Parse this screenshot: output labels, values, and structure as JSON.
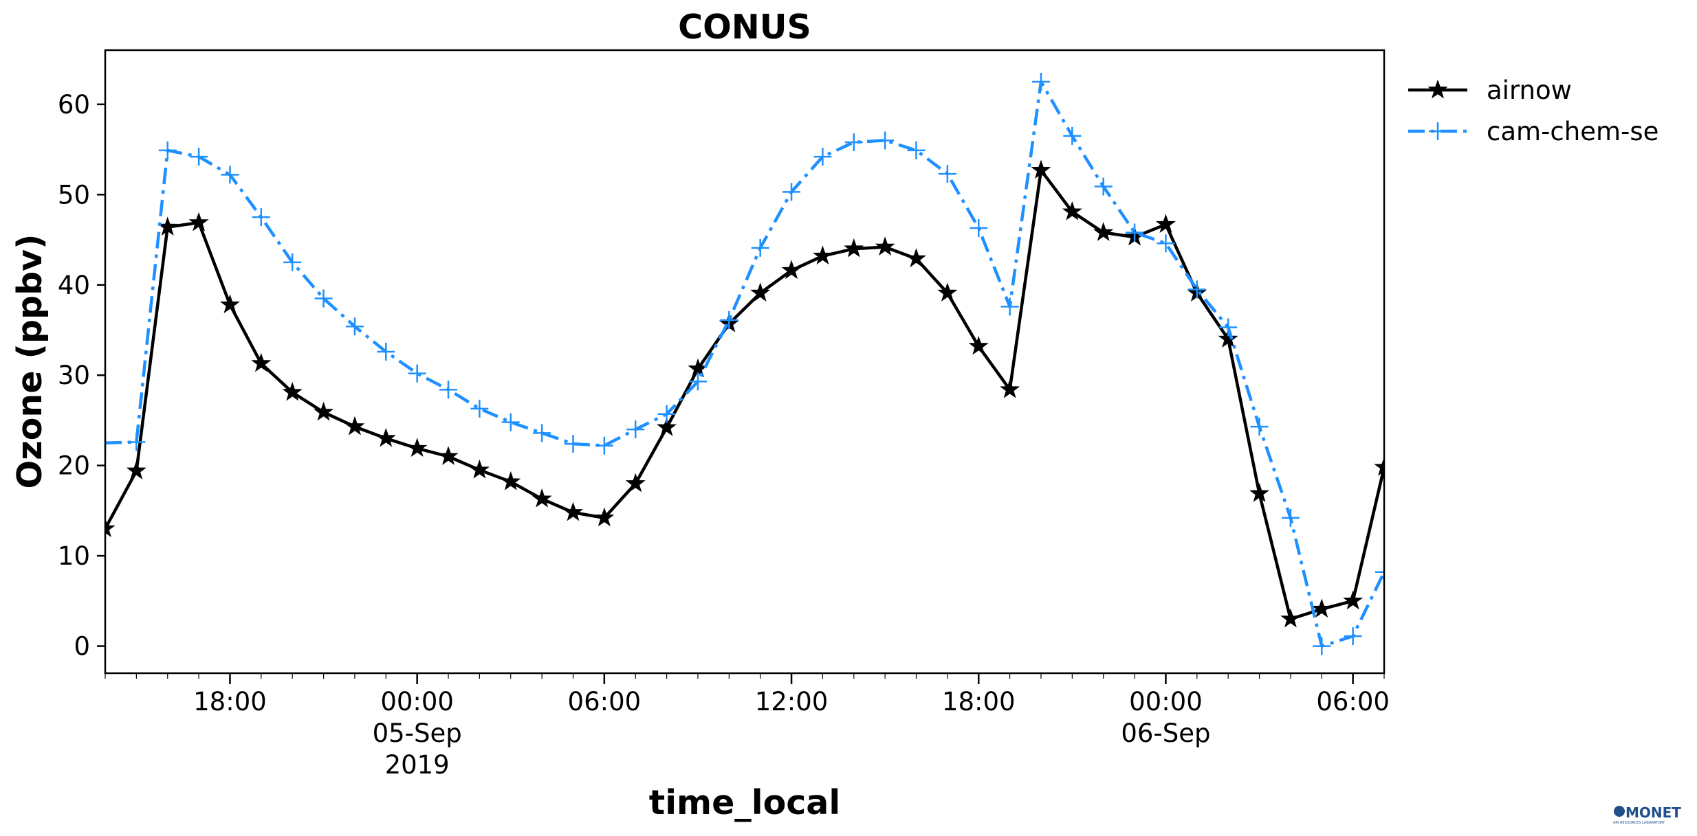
{
  "chart_data": {
    "type": "line",
    "title": "CONUS",
    "xlabel": "time_local",
    "ylabel": "Ozone (ppbv)",
    "xlim": [
      "2019-09-04T14:00",
      "2019-09-06T07:00"
    ],
    "ylim": [
      -3,
      66
    ],
    "x_ticks": [
      {
        "label": [
          "18:00"
        ]
      },
      {
        "label": [
          "00:00",
          "05-Sep",
          "2019"
        ]
      },
      {
        "label": [
          "06:00"
        ]
      },
      {
        "label": [
          "12:00"
        ]
      },
      {
        "label": [
          "18:00"
        ]
      },
      {
        "label": [
          "00:00",
          "06-Sep"
        ]
      },
      {
        "label": [
          "06:00"
        ]
      }
    ],
    "y_ticks": [
      0,
      10,
      20,
      30,
      40,
      50,
      60
    ],
    "grid": false,
    "legend_position": "outside top-right",
    "x": [
      "2019-09-04 14:00",
      "2019-09-04 15:00",
      "2019-09-04 16:00",
      "2019-09-04 17:00",
      "2019-09-04 18:00",
      "2019-09-04 19:00",
      "2019-09-04 20:00",
      "2019-09-04 21:00",
      "2019-09-04 22:00",
      "2019-09-04 23:00",
      "2019-09-05 00:00",
      "2019-09-05 01:00",
      "2019-09-05 02:00",
      "2019-09-05 03:00",
      "2019-09-05 04:00",
      "2019-09-05 05:00",
      "2019-09-05 06:00",
      "2019-09-05 07:00",
      "2019-09-05 08:00",
      "2019-09-05 09:00",
      "2019-09-05 10:00",
      "2019-09-05 11:00",
      "2019-09-05 12:00",
      "2019-09-05 13:00",
      "2019-09-05 14:00",
      "2019-09-05 15:00",
      "2019-09-05 16:00",
      "2019-09-05 17:00",
      "2019-09-05 18:00",
      "2019-09-05 19:00",
      "2019-09-05 20:00",
      "2019-09-05 21:00",
      "2019-09-05 22:00",
      "2019-09-05 23:00",
      "2019-09-06 00:00",
      "2019-09-06 01:00",
      "2019-09-06 02:00",
      "2019-09-06 03:00",
      "2019-09-06 04:00",
      "2019-09-06 05:00",
      "2019-09-06 06:00",
      "2019-09-06 07:00"
    ],
    "series": [
      {
        "name": "airnow",
        "color": "#000000",
        "marker": "star",
        "linestyle": "solid",
        "values": [
          13.0,
          19.4,
          46.4,
          46.9,
          37.8,
          31.3,
          28.1,
          25.9,
          24.3,
          23.0,
          21.9,
          21.0,
          19.5,
          18.2,
          16.3,
          14.8,
          14.2,
          18.0,
          24.2,
          30.7,
          35.7,
          39.1,
          41.6,
          43.2,
          44.0,
          44.2,
          42.9,
          39.1,
          33.2,
          28.4,
          52.7,
          48.1,
          45.8,
          45.3,
          46.7,
          39.1,
          34.0,
          16.9,
          3.0,
          4.1,
          5.0,
          19.8
        ]
      },
      {
        "name": "cam-chem-se",
        "color": "#1e90ff",
        "marker": "plus",
        "linestyle": "dashdot",
        "values": [
          22.5,
          22.6,
          54.9,
          54.2,
          52.2,
          47.5,
          42.5,
          38.5,
          35.4,
          32.6,
          30.2,
          28.4,
          26.3,
          24.8,
          23.6,
          22.4,
          22.2,
          24.0,
          25.7,
          29.3,
          36.1,
          44.1,
          50.3,
          54.2,
          55.8,
          56.0,
          54.9,
          52.3,
          46.3,
          37.6,
          62.5,
          56.5,
          50.9,
          45.8,
          44.6,
          39.5,
          35.3,
          24.3,
          14.2,
          0.0,
          1.1,
          8.2
        ]
      }
    ]
  },
  "logo": {
    "text": "MONET",
    "subtitle": "AIR RESOURCES LABORATORY"
  }
}
